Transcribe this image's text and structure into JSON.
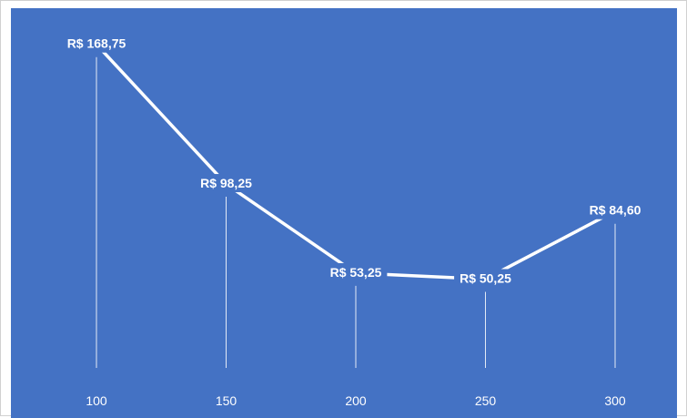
{
  "chart_data": {
    "type": "line",
    "title": "",
    "xlabel": "",
    "ylabel": "",
    "categories": [
      "100",
      "150",
      "200",
      "250",
      "300"
    ],
    "series": [
      {
        "values": [
          168.75,
          98.25,
          53.25,
          50.25,
          84.6
        ],
        "labels": [
          "R$ 168,75",
          "R$ 98,25",
          "R$ 53,25",
          "R$ 50,25",
          "R$ 84,60"
        ]
      }
    ],
    "grid": false,
    "legend": "none",
    "background_color": "#4472c4",
    "line_color": "#ffffff"
  }
}
